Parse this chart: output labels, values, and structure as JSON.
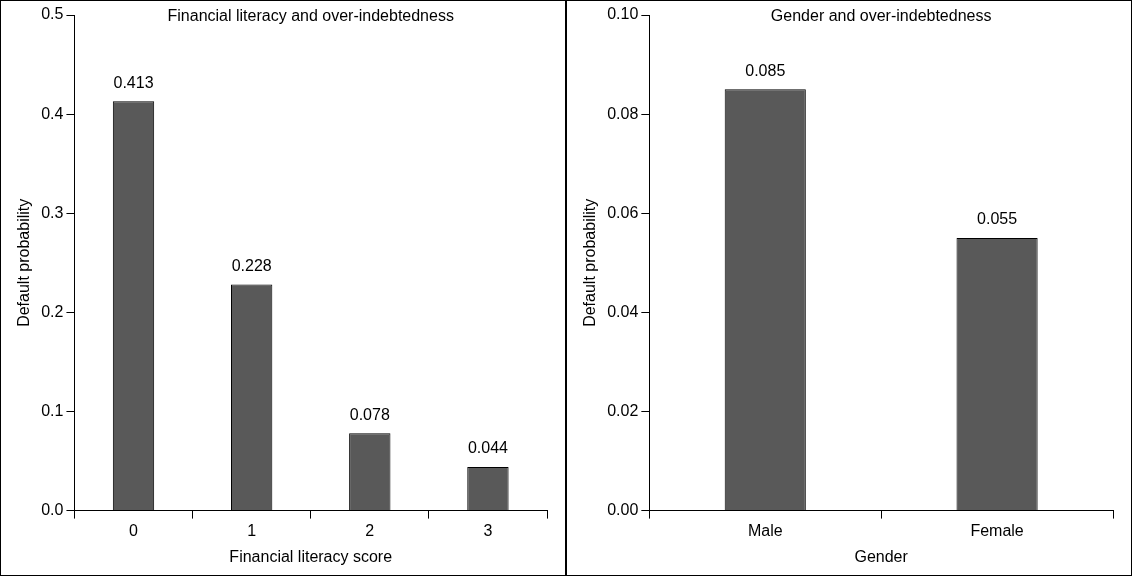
{
  "chart_data": [
    {
      "type": "bar",
      "title": "Financial literacy and over-indebtedness",
      "xlabel": "Financial literacy score",
      "ylabel": "Default probability",
      "categories": [
        "0",
        "1",
        "2",
        "3"
      ],
      "values": [
        0.413,
        0.228,
        0.078,
        0.044
      ],
      "color": "#595959",
      "ylim": [
        0,
        0.5
      ],
      "yticks": [
        {
          "value": 0,
          "label": "0.0"
        },
        {
          "value": 0.1,
          "label": "0.1"
        },
        {
          "value": 0.2,
          "label": "0.2"
        },
        {
          "value": 0.3,
          "label": "0.3"
        },
        {
          "value": 0.4,
          "label": "0.4"
        },
        {
          "value": 0.5,
          "label": "0.5"
        }
      ],
      "data_labels": true,
      "grid": false,
      "legend": false
    },
    {
      "type": "bar",
      "title": "Gender and over-indebtedness",
      "xlabel": "Gender",
      "ylabel": "Default probability",
      "categories": [
        "Male",
        "Female"
      ],
      "values": [
        0.085,
        0.055
      ],
      "color": "#595959",
      "ylim": [
        0,
        0.1
      ],
      "yticks": [
        {
          "value": 0,
          "label": "0.00"
        },
        {
          "value": 0.02,
          "label": "0.02"
        },
        {
          "value": 0.04,
          "label": "0.04"
        },
        {
          "value": 0.06,
          "label": "0.06"
        },
        {
          "value": 0.08,
          "label": "0.08"
        },
        {
          "value": 0.1,
          "label": "0.10"
        }
      ],
      "data_labels": true,
      "grid": false,
      "legend": false
    }
  ]
}
